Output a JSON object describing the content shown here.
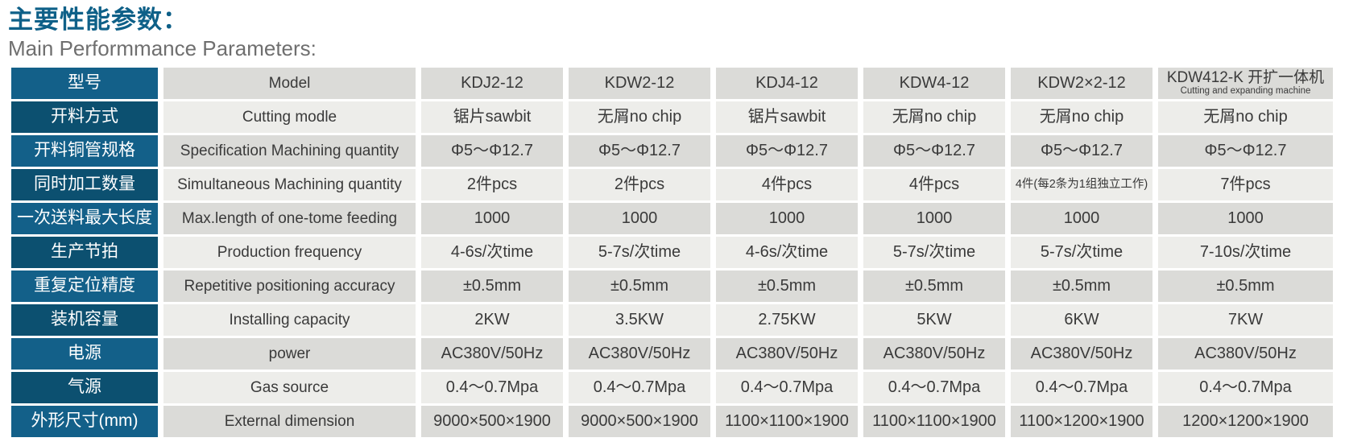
{
  "header": {
    "title_zh": "主要性能参数：",
    "title_en": "Main Performmance Parameters:"
  },
  "colors": {
    "title_blue": "#0E6088",
    "label_col_blue_light": "#136089",
    "label_col_blue_dark": "#0C5070",
    "row_gray_dark": "#DBDBD8",
    "row_gray_light": "#EDEDEA",
    "body_text": "#3A3A3A"
  },
  "table": {
    "rows": [
      {
        "zh": "型号",
        "en": "Model",
        "values": [
          "KDJ2-12",
          "KDW2-12",
          "KDJ4-12",
          "KDW4-12",
          "KDW2×2-12",
          "KDW412-K 开扩一体机"
        ],
        "model_sub": "Cutting and expanding machine"
      },
      {
        "zh": "开料方式",
        "en": "Cutting modle",
        "values": [
          "锯片sawbit",
          "无屑no chip",
          "锯片sawbit",
          "无屑no chip",
          "无屑no chip",
          "无屑no chip"
        ]
      },
      {
        "zh": "开料铜管规格",
        "en": "Specification Machining quantity",
        "values": [
          "Φ5～Φ12.7",
          "Φ5～Φ12.7",
          "Φ5～Φ12.7",
          "Φ5～Φ12.7",
          "Φ5～Φ12.7",
          "Φ5～Φ12.7"
        ]
      },
      {
        "zh": "同时加工数量",
        "en": "Simultaneous Machining quantity",
        "values": [
          "2件pcs",
          "2件pcs",
          "4件pcs",
          "4件pcs",
          "4件(每2条为1组独立工作)",
          "7件pcs"
        ]
      },
      {
        "zh": "一次送料最大长度",
        "en": "Max.length of one-tome feeding",
        "values": [
          "1000",
          "1000",
          "1000",
          "1000",
          "1000",
          "1000"
        ]
      },
      {
        "zh": "生产节拍",
        "en": "Production frequency",
        "values": [
          "4-6s/次time",
          "5-7s/次time",
          "4-6s/次time",
          "5-7s/次time",
          "5-7s/次time",
          "7-10s/次time"
        ]
      },
      {
        "zh": "重复定位精度",
        "en": "Repetitive positioning accuracy",
        "values": [
          "±0.5mm",
          "±0.5mm",
          "±0.5mm",
          "±0.5mm",
          "±0.5mm",
          "±0.5mm"
        ]
      },
      {
        "zh": "装机容量",
        "en": "Installing capacity",
        "values": [
          "2KW",
          "3.5KW",
          "2.75KW",
          "5KW",
          "6KW",
          "7KW"
        ]
      },
      {
        "zh": "电源",
        "en": "power",
        "values": [
          "AC380V/50Hz",
          "AC380V/50Hz",
          "AC380V/50Hz",
          "AC380V/50Hz",
          "AC380V/50Hz",
          "AC380V/50Hz"
        ]
      },
      {
        "zh": "气源",
        "en": "Gas source",
        "values": [
          "0.4～0.7Mpa",
          "0.4～0.7Mpa",
          "0.4～0.7Mpa",
          "0.4～0.7Mpa",
          "0.4～0.7Mpa",
          "0.4～0.7Mpa"
        ]
      },
      {
        "zh": "外形尺寸(mm)",
        "en": "External dimension",
        "values": [
          "9000×500×1900",
          "9000×500×1900",
          "1100×1100×1900",
          "1100×1100×1900",
          "1100×1200×1900",
          "1200×1200×1900"
        ]
      }
    ]
  }
}
